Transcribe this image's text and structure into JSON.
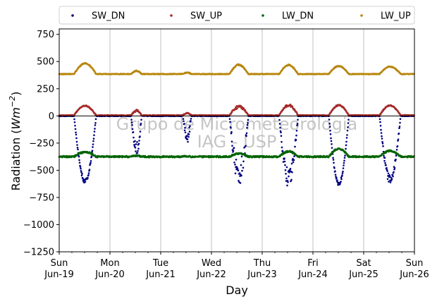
{
  "chart_data": {
    "type": "scatter",
    "xlabel": "Day",
    "ylabel": "Radiation (Wm⁻²)",
    "ylabel_main": "Radiation (",
    "ylabel_unit": "Wm",
    "ylabel_exp": "−2",
    "ylabel_close": ")",
    "watermark": [
      "Grupo de Micrometeorologia",
      "IAG - USP"
    ],
    "xlim": [
      "2017-06-19",
      "2017-06-26"
    ],
    "ylim": [
      -1250,
      800
    ],
    "yticks": [
      750,
      500,
      250,
      0,
      -250,
      -500,
      -750,
      -1000,
      -1250
    ],
    "xticks": [
      {
        "date": "2017-06-19",
        "day": "Sun",
        "label": "Jun-19"
      },
      {
        "date": "2017-06-20",
        "day": "Mon",
        "label": "Jun-20"
      },
      {
        "date": "2017-06-21",
        "day": "Tue",
        "label": "Jun-21"
      },
      {
        "date": "2017-06-22",
        "day": "Wed",
        "label": "Jun-22"
      },
      {
        "date": "2017-06-23",
        "day": "Thu",
        "label": "Jun-23"
      },
      {
        "date": "2017-06-24",
        "day": "Fri",
        "label": "Jun-24"
      },
      {
        "date": "2017-06-25",
        "day": "Sat",
        "label": "Jun-25"
      },
      {
        "date": "2017-06-26",
        "day": "Sun",
        "label": "Jun-26"
      }
    ],
    "grid": "vertical",
    "zero_line": true,
    "legend_position": "top, outside plot",
    "series": [
      {
        "name": "SW_DN",
        "color": "#000080",
        "night_value": 0,
        "days": [
          {
            "date": "2017-06-19",
            "peak": -620,
            "start": "07:00",
            "end": "17:30",
            "noise": 0.06
          },
          {
            "date": "2017-06-20",
            "peak": -380,
            "start": "10:00",
            "end": "15:00",
            "noise": 0.35
          },
          {
            "date": "2017-06-21",
            "peak": -250,
            "start": "10:30",
            "end": "14:30",
            "noise": 0.45
          },
          {
            "date": "2017-06-22",
            "peak": -640,
            "start": "08:30",
            "end": "17:30",
            "noise": 0.35
          },
          {
            "date": "2017-06-23",
            "peak": -660,
            "start": "08:00",
            "end": "17:00",
            "noise": 0.25
          },
          {
            "date": "2017-06-24",
            "peak": -640,
            "start": "07:30",
            "end": "17:00",
            "noise": 0.05
          },
          {
            "date": "2017-06-25",
            "peak": -620,
            "start": "07:30",
            "end": "17:30",
            "noise": 0.12
          }
        ]
      },
      {
        "name": "SW_UP",
        "color": "#a52a2a",
        "night_value": 5,
        "days": [
          {
            "date": "2017-06-19",
            "peak": 95,
            "start": "07:00",
            "end": "17:30",
            "noise": 0.05
          },
          {
            "date": "2017-06-20",
            "peak": 55,
            "start": "10:00",
            "end": "15:00",
            "noise": 0.3
          },
          {
            "date": "2017-06-21",
            "peak": 28,
            "start": "10:30",
            "end": "14:30",
            "noise": 0.3
          },
          {
            "date": "2017-06-22",
            "peak": 100,
            "start": "08:30",
            "end": "17:30",
            "noise": 0.3
          },
          {
            "date": "2017-06-23",
            "peak": 105,
            "start": "08:00",
            "end": "17:00",
            "noise": 0.15
          },
          {
            "date": "2017-06-24",
            "peak": 100,
            "start": "07:30",
            "end": "17:00",
            "noise": 0.05
          },
          {
            "date": "2017-06-25",
            "peak": 100,
            "start": "07:30",
            "end": "17:30",
            "noise": 0.08
          }
        ]
      },
      {
        "name": "LW_DN",
        "color": "#006400",
        "night_value": -375,
        "days": [
          {
            "date": "2017-06-19",
            "peak": -330,
            "start": "07:00",
            "end": "17:30",
            "noise": 0.1
          },
          {
            "date": "2017-06-20",
            "peak": -365,
            "start": "10:00",
            "end": "15:00",
            "noise": 0.1
          },
          {
            "date": "2017-06-21",
            "peak": -370,
            "start": "10:30",
            "end": "14:30",
            "noise": 0.1
          },
          {
            "date": "2017-06-22",
            "peak": -345,
            "start": "08:30",
            "end": "17:30",
            "noise": 0.1
          },
          {
            "date": "2017-06-23",
            "peak": -325,
            "start": "08:00",
            "end": "17:00",
            "noise": 0.1
          },
          {
            "date": "2017-06-24",
            "peak": -300,
            "start": "07:30",
            "end": "17:00",
            "noise": 0.1
          },
          {
            "date": "2017-06-25",
            "peak": -320,
            "start": "07:30",
            "end": "17:30",
            "noise": 0.1
          }
        ]
      },
      {
        "name": "LW_UP",
        "color": "#b8860b",
        "night_value": 385,
        "days": [
          {
            "date": "2017-06-19",
            "peak": 485,
            "start": "07:00",
            "end": "17:30",
            "noise": 0.05
          },
          {
            "date": "2017-06-20",
            "peak": 415,
            "start": "10:00",
            "end": "15:00",
            "noise": 0.1
          },
          {
            "date": "2017-06-21",
            "peak": 400,
            "start": "10:30",
            "end": "14:30",
            "noise": 0.1
          },
          {
            "date": "2017-06-22",
            "peak": 475,
            "start": "08:30",
            "end": "17:30",
            "noise": 0.12
          },
          {
            "date": "2017-06-23",
            "peak": 470,
            "start": "08:00",
            "end": "17:00",
            "noise": 0.08
          },
          {
            "date": "2017-06-24",
            "peak": 460,
            "start": "07:30",
            "end": "17:00",
            "noise": 0.05
          },
          {
            "date": "2017-06-25",
            "peak": 455,
            "start": "07:30",
            "end": "17:30",
            "noise": 0.05
          }
        ]
      }
    ]
  }
}
